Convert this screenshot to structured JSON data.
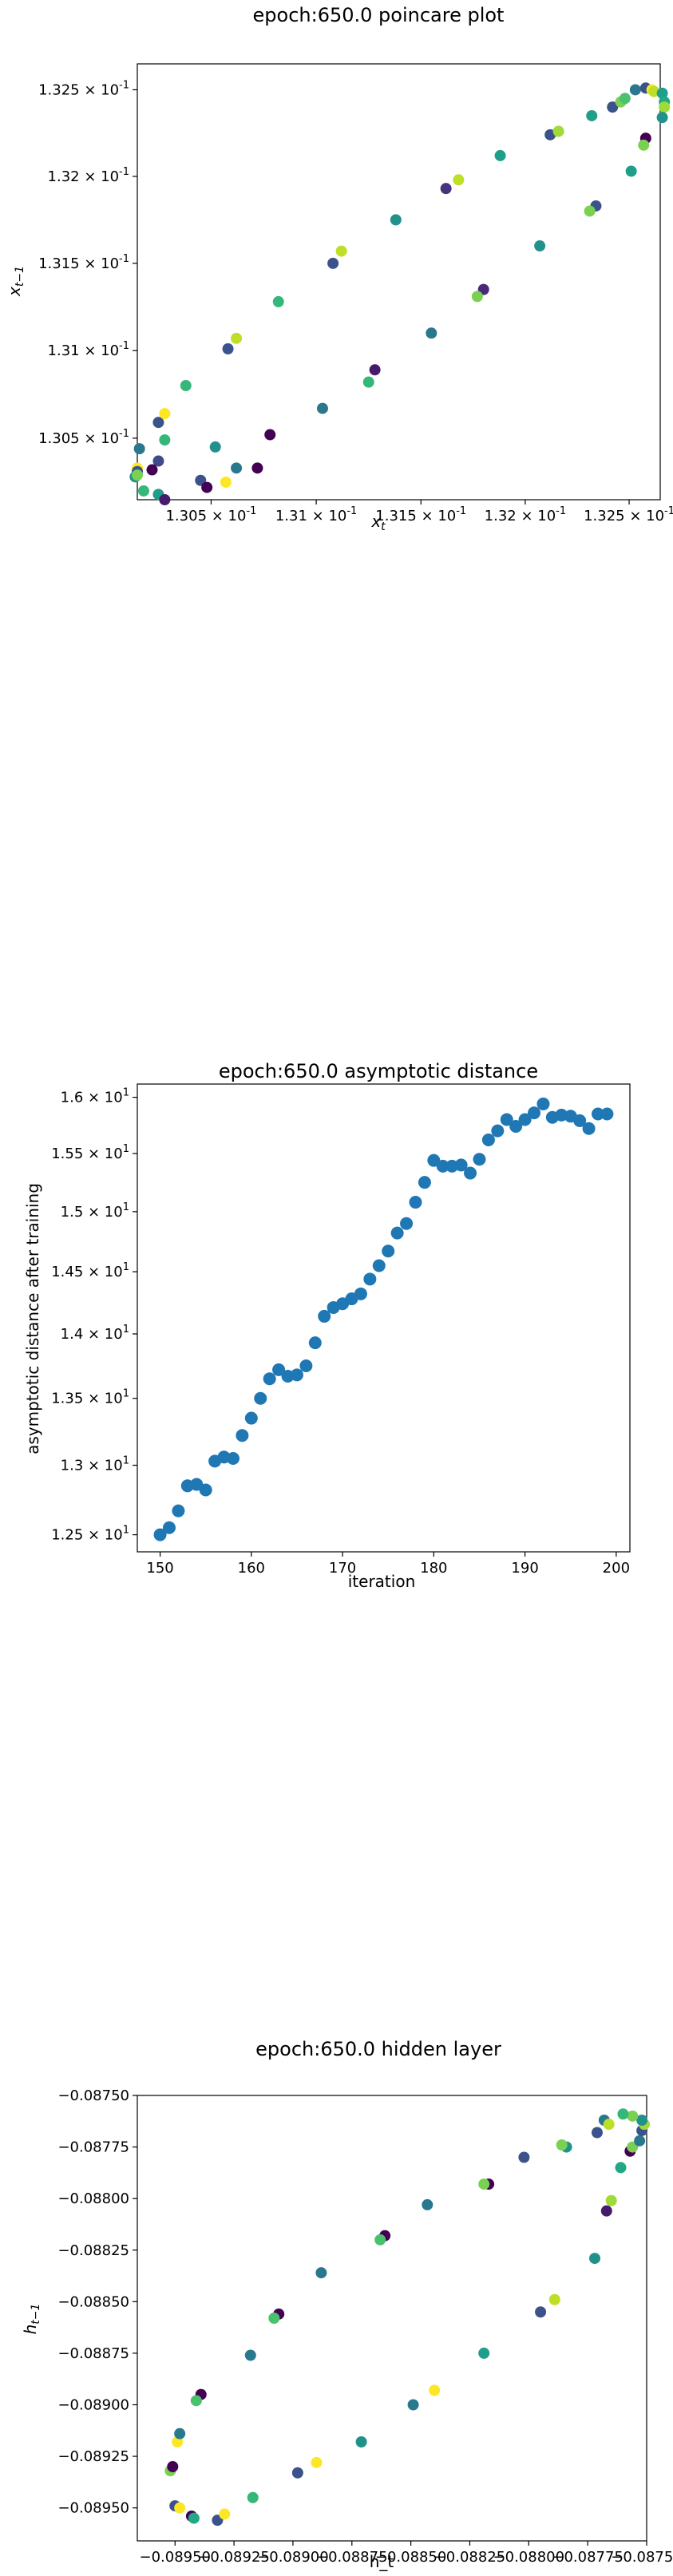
{
  "chart_data": [
    {
      "type": "scatter",
      "title": "epoch:650.0 poincare plot",
      "xlabel": "x_t",
      "ylabel": "x_{t-1}",
      "xscale": "log",
      "yscale": "log",
      "xlim": [
        0.13015,
        0.13265
      ],
      "ylim": [
        0.13015,
        0.13265
      ],
      "xtick_labels": [
        "1.305 × 10^-1",
        "1.31 × 10^-1",
        "1.315 × 10^-1",
        "1.32 × 10^-1",
        "1.325 × 10^-1"
      ],
      "ytick_labels": [
        "1.305 × 10^-1",
        "1.31 × 10^-1",
        "1.315 × 10^-1",
        "1.32 × 10^-1",
        "1.325 × 10^-1"
      ],
      "xticks": [
        0.1305,
        0.131,
        0.1315,
        0.132,
        0.1325
      ],
      "yticks": [
        0.1305,
        0.131,
        0.1315,
        0.132,
        0.1325
      ],
      "grid": false,
      "colormap": "viridis",
      "points": [
        {
          "x": 0.13025,
          "y": 0.13037,
          "c": "#3e4a89"
        },
        {
          "x": 0.13022,
          "y": 0.13032,
          "c": "#440154"
        },
        {
          "x": 0.13015,
          "y": 0.13033,
          "c": "#fde725"
        },
        {
          "x": 0.13015,
          "y": 0.13031,
          "c": "#3b528b"
        },
        {
          "x": 0.13014,
          "y": 0.13028,
          "c": "#21918c"
        },
        {
          "x": 0.13016,
          "y": 0.13044,
          "c": "#2a788e"
        },
        {
          "x": 0.13015,
          "y": 0.13029,
          "c": "#7ad151"
        },
        {
          "x": 0.13018,
          "y": 0.1302,
          "c": "#35b779"
        },
        {
          "x": 0.13025,
          "y": 0.13018,
          "c": "#1f9e89"
        },
        {
          "x": 0.13028,
          "y": 0.13015,
          "c": "#481a6c"
        },
        {
          "x": 0.13045,
          "y": 0.13026,
          "c": "#3b528b"
        },
        {
          "x": 0.13048,
          "y": 0.13022,
          "c": "#440154"
        },
        {
          "x": 0.13057,
          "y": 0.13025,
          "c": "#fde725"
        },
        {
          "x": 0.13062,
          "y": 0.13033,
          "c": "#2a788e"
        },
        {
          "x": 0.13072,
          "y": 0.13033,
          "c": "#440154"
        },
        {
          "x": 0.13052,
          "y": 0.13045,
          "c": "#21918c"
        },
        {
          "x": 0.13028,
          "y": 0.13049,
          "c": "#35b779"
        },
        {
          "x": 0.13025,
          "y": 0.13059,
          "c": "#3b528b"
        },
        {
          "x": 0.13028,
          "y": 0.13064,
          "c": "#fde725"
        },
        {
          "x": 0.13038,
          "y": 0.1308,
          "c": "#35b779"
        },
        {
          "x": 0.13058,
          "y": 0.13101,
          "c": "#3b528b"
        },
        {
          "x": 0.13062,
          "y": 0.13107,
          "c": "#bddf26"
        },
        {
          "x": 0.13082,
          "y": 0.13128,
          "c": "#35b779"
        },
        {
          "x": 0.13108,
          "y": 0.1315,
          "c": "#3b528b"
        },
        {
          "x": 0.13112,
          "y": 0.13157,
          "c": "#bddf26"
        },
        {
          "x": 0.13138,
          "y": 0.13175,
          "c": "#21918c"
        },
        {
          "x": 0.13162,
          "y": 0.13193,
          "c": "#46337e"
        },
        {
          "x": 0.13168,
          "y": 0.13198,
          "c": "#bddf26"
        },
        {
          "x": 0.13188,
          "y": 0.13212,
          "c": "#1f9e89"
        },
        {
          "x": 0.13212,
          "y": 0.13224,
          "c": "#3b528b"
        },
        {
          "x": 0.13216,
          "y": 0.13226,
          "c": "#a0da39"
        },
        {
          "x": 0.13232,
          "y": 0.13235,
          "c": "#1f9e89"
        },
        {
          "x": 0.13242,
          "y": 0.1324,
          "c": "#3b528b"
        },
        {
          "x": 0.13246,
          "y": 0.13243,
          "c": "#7ad151"
        },
        {
          "x": 0.13248,
          "y": 0.13245,
          "c": "#4ac16d"
        },
        {
          "x": 0.13253,
          "y": 0.1325,
          "c": "#2a788e"
        },
        {
          "x": 0.13258,
          "y": 0.13251,
          "c": "#3b528b"
        },
        {
          "x": 0.13261,
          "y": 0.1325,
          "c": "#fde725"
        },
        {
          "x": 0.13262,
          "y": 0.13249,
          "c": "#bddf26"
        },
        {
          "x": 0.13266,
          "y": 0.13248,
          "c": "#1f9e89"
        },
        {
          "x": 0.13267,
          "y": 0.13243,
          "c": "#22a884"
        },
        {
          "x": 0.13267,
          "y": 0.1324,
          "c": "#a0da39"
        },
        {
          "x": 0.13266,
          "y": 0.13234,
          "c": "#21918c"
        },
        {
          "x": 0.13258,
          "y": 0.13222,
          "c": "#440154"
        },
        {
          "x": 0.13257,
          "y": 0.13218,
          "c": "#7ad151"
        },
        {
          "x": 0.13251,
          "y": 0.13203,
          "c": "#1f9e89"
        },
        {
          "x": 0.13234,
          "y": 0.13183,
          "c": "#3b528b"
        },
        {
          "x": 0.13231,
          "y": 0.1318,
          "c": "#7ad151"
        },
        {
          "x": 0.13207,
          "y": 0.1316,
          "c": "#21918c"
        },
        {
          "x": 0.1318,
          "y": 0.13135,
          "c": "#482878"
        },
        {
          "x": 0.13177,
          "y": 0.13131,
          "c": "#7ad151"
        },
        {
          "x": 0.13155,
          "y": 0.1311,
          "c": "#2a788e"
        },
        {
          "x": 0.13128,
          "y": 0.13089,
          "c": "#481a6c"
        },
        {
          "x": 0.13125,
          "y": 0.13082,
          "c": "#35b779"
        },
        {
          "x": 0.13103,
          "y": 0.13067,
          "c": "#2a788e"
        },
        {
          "x": 0.13078,
          "y": 0.13052,
          "c": "#440154"
        }
      ]
    },
    {
      "type": "scatter",
      "title": "epoch:650.0 asymptotic distance",
      "xlabel": "iteration",
      "ylabel": "asymptotic distance after training",
      "yscale": "log",
      "xlim": [
        147.5,
        201.5
      ],
      "ylim": [
        12.38,
        16.12
      ],
      "xticks": [
        150,
        160,
        170,
        180,
        190,
        200
      ],
      "xtick_labels": [
        "150",
        "160",
        "170",
        "180",
        "190",
        "200"
      ],
      "yticks": [
        12.5,
        13,
        13.5,
        14,
        14.5,
        15,
        15.5,
        16
      ],
      "ytick_labels": [
        "1.25 × 10^1",
        "1.3 × 10^1",
        "1.35 × 10^1",
        "1.4 × 10^1",
        "1.45 × 10^1",
        "1.5 × 10^1",
        "1.55 × 10^1",
        "1.6 × 10^1"
      ],
      "grid": false,
      "color": "#1f77b4",
      "x": [
        150,
        151,
        152,
        153,
        154,
        155,
        156,
        157,
        158,
        159,
        160,
        161,
        162,
        163,
        164,
        165,
        166,
        167,
        168,
        169,
        170,
        171,
        172,
        173,
        174,
        175,
        176,
        177,
        178,
        179,
        180,
        181,
        182,
        183,
        184,
        185,
        186,
        187,
        188,
        189,
        190,
        191,
        192,
        193,
        194,
        195,
        196,
        197,
        198,
        199
      ],
      "y": [
        12.5,
        12.55,
        12.67,
        12.85,
        12.86,
        12.82,
        13.03,
        13.06,
        13.05,
        13.22,
        13.35,
        13.5,
        13.65,
        13.72,
        13.67,
        13.68,
        13.75,
        13.93,
        14.14,
        14.21,
        14.24,
        14.28,
        14.32,
        14.44,
        14.55,
        14.67,
        14.82,
        14.9,
        15.08,
        15.25,
        15.44,
        15.39,
        15.39,
        15.4,
        15.33,
        15.45,
        15.62,
        15.7,
        15.8,
        15.74,
        15.8,
        15.86,
        15.94,
        15.82,
        15.84,
        15.83,
        15.79,
        15.72,
        15.85,
        15.85
      ]
    },
    {
      "type": "scatter",
      "title": "epoch:650.0 hidden layer",
      "xlabel": "h_t",
      "ylabel": "h_{t-1}",
      "xlim": [
        -0.08966,
        -0.0875
      ],
      "ylim": [
        -0.08966,
        -0.0875
      ],
      "xticks": [
        -0.0895,
        -0.08925,
        -0.089,
        -0.08875,
        -0.0885,
        -0.08825,
        -0.088,
        -0.08775,
        -0.0875
      ],
      "xtick_labels": [
        "−0.08950",
        "−0.08925",
        "−0.08900",
        "−0.08875",
        "−0.08850",
        "−0.08825",
        "−0.08800",
        "−0.08775",
        "−0.08750"
      ],
      "yticks": [
        -0.0875,
        -0.08775,
        -0.088,
        -0.08825,
        -0.0885,
        -0.08875,
        -0.089,
        -0.08925,
        -0.0895
      ],
      "ytick_labels": [
        "−0.08750",
        "−0.08775",
        "−0.08800",
        "−0.08825",
        "−0.08850",
        "−0.08875",
        "−0.08900",
        "−0.08925",
        "−0.08950"
      ],
      "grid": false,
      "colormap": "viridis",
      "points": [
        {
          "x": -0.08952,
          "y": -0.08932,
          "c": "#7ad151"
        },
        {
          "x": -0.08951,
          "y": -0.0893,
          "c": "#440154"
        },
        {
          "x": -0.08949,
          "y": -0.08918,
          "c": "#fde725"
        },
        {
          "x": -0.08948,
          "y": -0.08914,
          "c": "#2a788e"
        },
        {
          "x": -0.0895,
          "y": -0.08949,
          "c": "#3b528b"
        },
        {
          "x": -0.08948,
          "y": -0.0895,
          "c": "#fde725"
        },
        {
          "x": -0.08943,
          "y": -0.08954,
          "c": "#440154"
        },
        {
          "x": -0.08942,
          "y": -0.08955,
          "c": "#22a884"
        },
        {
          "x": -0.08932,
          "y": -0.08956,
          "c": "#3b528b"
        },
        {
          "x": -0.08929,
          "y": -0.08953,
          "c": "#fde725"
        },
        {
          "x": -0.08917,
          "y": -0.08945,
          "c": "#35b779"
        },
        {
          "x": -0.08898,
          "y": -0.08933,
          "c": "#3b528b"
        },
        {
          "x": -0.0889,
          "y": -0.08928,
          "c": "#fde725"
        },
        {
          "x": -0.08871,
          "y": -0.08918,
          "c": "#21918c"
        },
        {
          "x": -0.08849,
          "y": -0.089,
          "c": "#2a788e"
        },
        {
          "x": -0.0884,
          "y": -0.08893,
          "c": "#fde725"
        },
        {
          "x": -0.08819,
          "y": -0.08875,
          "c": "#1f9e89"
        },
        {
          "x": -0.08795,
          "y": -0.08855,
          "c": "#3b528b"
        },
        {
          "x": -0.08789,
          "y": -0.08849,
          "c": "#bddf26"
        },
        {
          "x": -0.08772,
          "y": -0.08829,
          "c": "#21918c"
        },
        {
          "x": -0.08767,
          "y": -0.08806,
          "c": "#481a6c"
        },
        {
          "x": -0.08765,
          "y": -0.08801,
          "c": "#a0da39"
        },
        {
          "x": -0.08761,
          "y": -0.08785,
          "c": "#22a884"
        },
        {
          "x": -0.08757,
          "y": -0.08777,
          "c": "#440154"
        },
        {
          "x": -0.08756,
          "y": -0.08775,
          "c": "#7ad151"
        },
        {
          "x": -0.08753,
          "y": -0.08772,
          "c": "#2a788e"
        },
        {
          "x": -0.08752,
          "y": -0.08767,
          "c": "#3b528b"
        },
        {
          "x": -0.08751,
          "y": -0.08764,
          "c": "#a0da39"
        },
        {
          "x": -0.08752,
          "y": -0.08762,
          "c": "#21918c"
        },
        {
          "x": -0.08756,
          "y": -0.0876,
          "c": "#7ad151"
        },
        {
          "x": -0.0876,
          "y": -0.08759,
          "c": "#35b779"
        },
        {
          "x": -0.08768,
          "y": -0.08762,
          "c": "#2a788e"
        },
        {
          "x": -0.08766,
          "y": -0.08764,
          "c": "#bddf26"
        },
        {
          "x": -0.08771,
          "y": -0.08768,
          "c": "#3b528b"
        },
        {
          "x": -0.08784,
          "y": -0.08775,
          "c": "#21918c"
        },
        {
          "x": -0.08786,
          "y": -0.08774,
          "c": "#7ad151"
        },
        {
          "x": -0.08802,
          "y": -0.0878,
          "c": "#3b528b"
        },
        {
          "x": -0.08817,
          "y": -0.08793,
          "c": "#440154"
        },
        {
          "x": -0.08819,
          "y": -0.08793,
          "c": "#7ad151"
        },
        {
          "x": -0.08843,
          "y": -0.08803,
          "c": "#2a788e"
        },
        {
          "x": -0.08861,
          "y": -0.08818,
          "c": "#440154"
        },
        {
          "x": -0.08863,
          "y": -0.0882,
          "c": "#4ac16d"
        },
        {
          "x": -0.08888,
          "y": -0.08836,
          "c": "#2a788e"
        },
        {
          "x": -0.08906,
          "y": -0.08856,
          "c": "#440154"
        },
        {
          "x": -0.08908,
          "y": -0.08858,
          "c": "#4ac16d"
        },
        {
          "x": -0.08918,
          "y": -0.08876,
          "c": "#2a788e"
        },
        {
          "x": -0.08939,
          "y": -0.08895,
          "c": "#440154"
        },
        {
          "x": -0.08941,
          "y": -0.08898,
          "c": "#4ac16d"
        }
      ]
    }
  ]
}
